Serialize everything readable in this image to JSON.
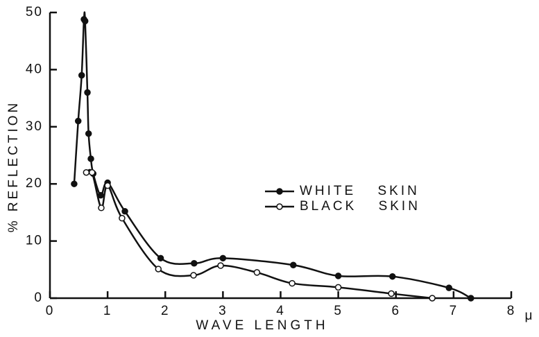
{
  "chart_data": {
    "type": "line",
    "x_label": "WAVE LENGTH",
    "x_unit": "μ",
    "y_label": "% REFLECTION",
    "xlim": [
      0,
      8
    ],
    "xticks": [
      0,
      1,
      2,
      3,
      4,
      5,
      6,
      7,
      8
    ],
    "ylim": [
      0,
      50
    ],
    "yticks": [
      0,
      10,
      20,
      30,
      40,
      50
    ],
    "grid": false,
    "legend": "right",
    "series": [
      {
        "name": "WHITE SKIN",
        "color": "#111111",
        "marker": "filled",
        "x": [
          0.42,
          0.49,
          0.55,
          0.59,
          0.61,
          0.65,
          0.67,
          0.71,
          0.75,
          0.88,
          1.0,
          1.3,
          1.92,
          2.5,
          3.0,
          4.22,
          5.0,
          5.94,
          6.92,
          7.3
        ],
        "values": [
          20,
          31,
          39,
          48.8,
          48.5,
          36,
          28.8,
          24.4,
          21.8,
          18,
          20.2,
          15.2,
          7,
          6.1,
          7,
          5.8,
          3.9,
          3.8,
          1.8,
          0
        ]
      },
      {
        "name": "BLACK SKIN",
        "color": "#111111",
        "marker": "open",
        "x": [
          0.63,
          0.73,
          0.89,
          1.0,
          1.25,
          1.88,
          2.49,
          2.96,
          3.59,
          4.2,
          5.0,
          5.92,
          6.63
        ],
        "values": [
          22,
          22,
          15.8,
          19.7,
          14,
          5.1,
          4,
          5.7,
          4.5,
          2.6,
          1.9,
          0.8,
          0
        ]
      }
    ]
  }
}
